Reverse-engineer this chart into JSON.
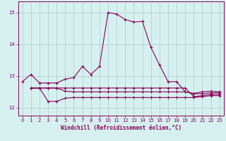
{
  "xlabel": "Windchill (Refroidissement éolien,°C)",
  "background_color": "#d6f0f0",
  "line_color": "#880055",
  "grid_color": "#aacccc",
  "xlim": [
    -0.5,
    23.5
  ],
  "ylim": [
    11.75,
    15.35
  ],
  "yticks": [
    12,
    13,
    14,
    15
  ],
  "xticks": [
    0,
    1,
    2,
    3,
    4,
    5,
    6,
    7,
    8,
    9,
    10,
    11,
    12,
    13,
    14,
    15,
    16,
    17,
    18,
    19,
    20,
    21,
    22,
    23
  ],
  "lines": [
    {
      "x": [
        0,
        1,
        2,
        3,
        4,
        5,
        6,
        7,
        8,
        9,
        10,
        11,
        12,
        13,
        14,
        15,
        16,
        17,
        18,
        19,
        20,
        21,
        22,
        23
      ],
      "y": [
        12.82,
        13.05,
        12.78,
        12.78,
        12.78,
        12.9,
        12.95,
        13.3,
        13.05,
        13.3,
        15.0,
        14.95,
        14.78,
        14.7,
        14.72,
        13.9,
        13.35,
        12.82,
        12.82,
        12.5,
        12.45,
        12.5,
        12.52,
        12.5
      ]
    },
    {
      "x": [
        1,
        2,
        3,
        4,
        5,
        6,
        7,
        8,
        9,
        10,
        11,
        12,
        13,
        14,
        15,
        16,
        17,
        18,
        19,
        20,
        21,
        22,
        23
      ],
      "y": [
        12.62,
        12.62,
        12.62,
        12.62,
        12.62,
        12.62,
        12.62,
        12.62,
        12.62,
        12.62,
        12.62,
        12.62,
        12.62,
        12.62,
        12.62,
        12.62,
        12.62,
        12.62,
        12.62,
        12.35,
        12.38,
        12.42,
        12.42
      ]
    },
    {
      "x": [
        1,
        2,
        3,
        4,
        5,
        6,
        7,
        8,
        9,
        10,
        11,
        12,
        13,
        14,
        15,
        16,
        17,
        18,
        19,
        20,
        21,
        22,
        23
      ],
      "y": [
        12.62,
        12.62,
        12.2,
        12.2,
        12.3,
        12.32,
        12.32,
        12.32,
        12.32,
        12.32,
        12.32,
        12.32,
        12.32,
        12.32,
        12.32,
        12.32,
        12.32,
        12.32,
        12.32,
        12.32,
        12.35,
        12.38,
        12.38
      ]
    },
    {
      "x": [
        1,
        2,
        3,
        4,
        5,
        6,
        7,
        8,
        9,
        10,
        11,
        12,
        13,
        14,
        15,
        16,
        17,
        18,
        19,
        20,
        21,
        22,
        23
      ],
      "y": [
        12.62,
        12.62,
        12.62,
        12.62,
        12.52,
        12.5,
        12.5,
        12.5,
        12.5,
        12.5,
        12.5,
        12.5,
        12.5,
        12.5,
        12.5,
        12.5,
        12.5,
        12.5,
        12.5,
        12.44,
        12.44,
        12.47,
        12.47
      ]
    }
  ],
  "marker": "+",
  "markersize": 3.5,
  "linewidth": 0.8
}
